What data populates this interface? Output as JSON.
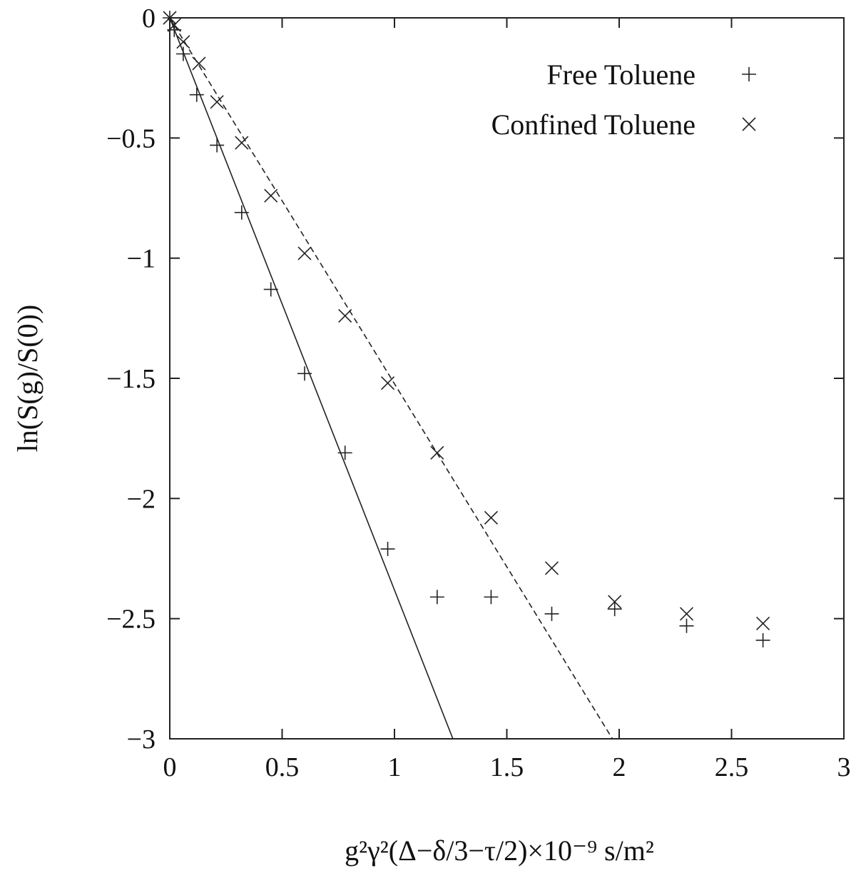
{
  "chart_data": {
    "type": "scatter",
    "title": "",
    "xlabel": "g²γ²(Δ−δ/3−τ/2)×10⁻⁹ s/m²",
    "ylabel": "ln(S(g)/S(0))",
    "xlim": [
      0,
      3
    ],
    "ylim": [
      -3,
      0
    ],
    "x_ticks": [
      0,
      0.5,
      1,
      1.5,
      2,
      2.5,
      3
    ],
    "x_tick_labels": [
      "0",
      "0.5",
      "1",
      "1.5",
      "2",
      "2.5",
      "3"
    ],
    "y_ticks": [
      0,
      -0.5,
      -1,
      -1.5,
      -2,
      -2.5,
      -3
    ],
    "y_tick_labels": [
      "0",
      "−0.5",
      "−1",
      "−1.5",
      "−2",
      "−2.5",
      "−3"
    ],
    "grid": false,
    "legend_position": "top-right",
    "series": [
      {
        "name": "Free Toluene",
        "marker": "plus",
        "x": [
          0.0,
          0.02,
          0.06,
          0.12,
          0.21,
          0.32,
          0.45,
          0.6,
          0.78,
          0.97,
          1.19,
          1.43,
          1.7,
          1.98,
          2.3,
          2.64
        ],
        "y": [
          0.0,
          -0.05,
          -0.15,
          -0.32,
          -0.53,
          -0.81,
          -1.13,
          -1.48,
          -1.81,
          -2.21,
          -2.41,
          -2.41,
          -2.48,
          -2.46,
          -2.53,
          -2.59
        ]
      },
      {
        "name": "Confined Toluene",
        "marker": "cross",
        "x": [
          0.0,
          0.02,
          0.06,
          0.13,
          0.21,
          0.32,
          0.45,
          0.6,
          0.78,
          0.97,
          1.19,
          1.43,
          1.7,
          1.98,
          2.3,
          2.64
        ],
        "y": [
          0.0,
          -0.03,
          -0.1,
          -0.19,
          -0.35,
          -0.52,
          -0.74,
          -0.98,
          -1.24,
          -1.52,
          -1.81,
          -2.08,
          -2.29,
          -2.43,
          -2.48,
          -2.52
        ]
      }
    ],
    "fit_lines": [
      {
        "style": "solid",
        "x": [
          0,
          1.26
        ],
        "y": [
          0,
          -3
        ]
      },
      {
        "style": "dashed",
        "x": [
          0,
          1.97
        ],
        "y": [
          0,
          -3
        ]
      }
    ]
  }
}
